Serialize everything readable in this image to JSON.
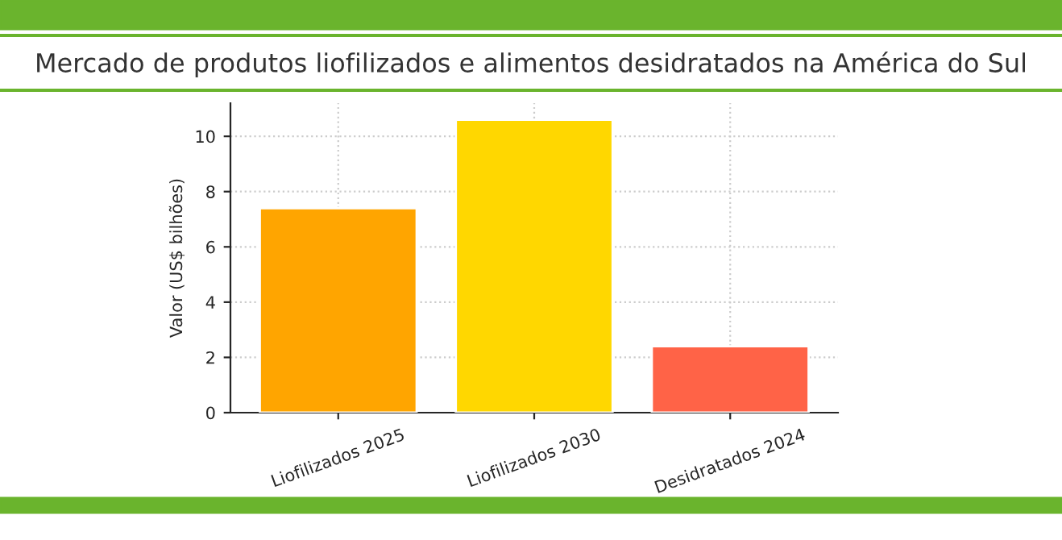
{
  "chart_data": {
    "type": "bar",
    "title": "Mercado de produtos liofilizados e alimentos desidratados na América do Sul",
    "ylabel": "Valor (US$ bilhões)",
    "categories": [
      "Liofilizados 2025",
      "Liofilizados 2030",
      "Desidratados 2024"
    ],
    "values": [
      7.4,
      10.6,
      2.4
    ],
    "colors": [
      "#ffa500",
      "#ffd700",
      "#ff6347"
    ],
    "ylim": [
      0,
      11.2
    ],
    "yticks": [
      0,
      2,
      4,
      6,
      8,
      10
    ],
    "grid": true
  }
}
